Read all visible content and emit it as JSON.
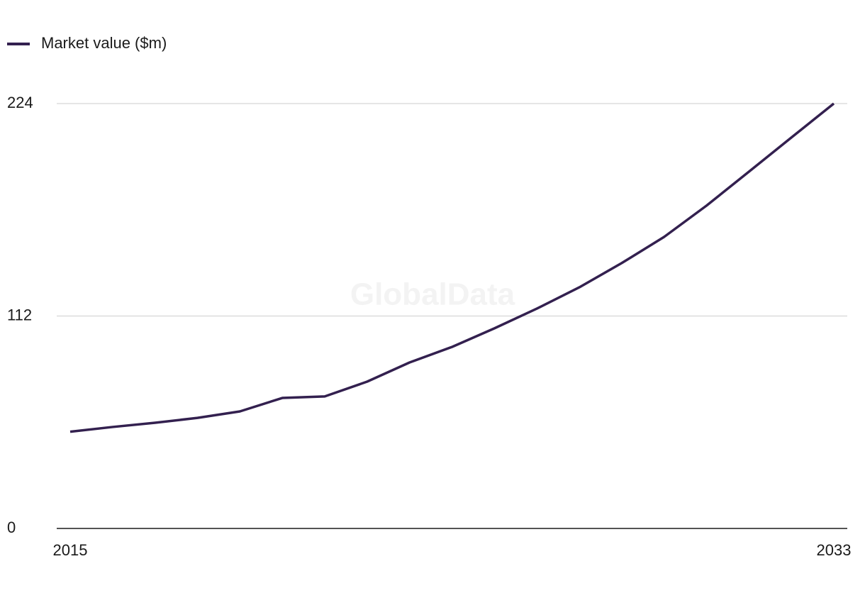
{
  "chart_data": {
    "type": "line",
    "watermark": "GlobalData",
    "x": [
      2015,
      2016,
      2017,
      2018,
      2019,
      2020,
      2021,
      2022,
      2023,
      2024,
      2025,
      2026,
      2027,
      2028,
      2029,
      2030,
      2031,
      2032,
      2033
    ],
    "series": [
      {
        "name": "Market value ($m)",
        "color": "#33204f",
        "values": [
          51,
          53.5,
          55.7,
          58.3,
          61.7,
          68.8,
          69.6,
          77.4,
          87.5,
          95.7,
          105.5,
          115.9,
          127.1,
          139.9,
          153.7,
          170.2,
          188.1,
          206.1,
          224
        ]
      }
    ],
    "xlim": [
      2015,
      2033
    ],
    "xticks": [
      2015,
      2033
    ],
    "ylim": [
      0,
      224
    ],
    "yticks": [
      0,
      112,
      224
    ],
    "grid": true,
    "legend": "top-left"
  }
}
